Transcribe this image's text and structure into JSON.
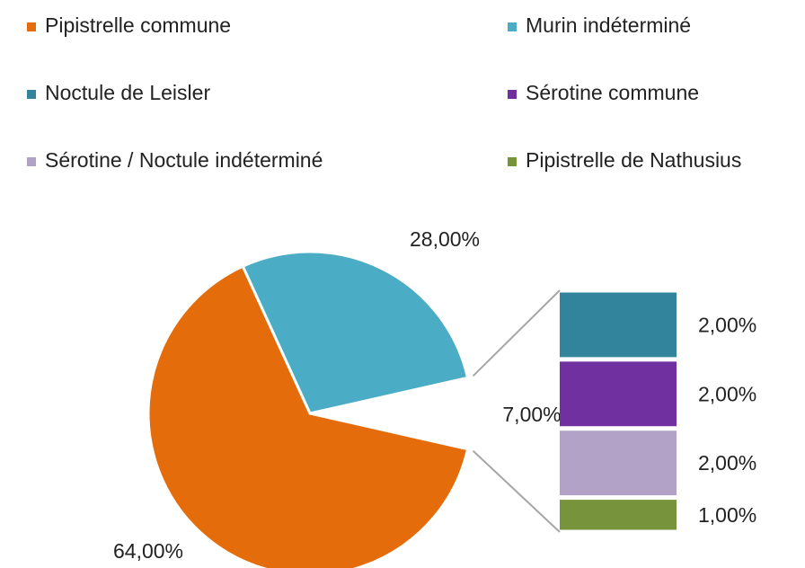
{
  "chart_data": {
    "type": "pie-of-bar",
    "pie": {
      "categories": [
        "Pipistrelle commune",
        "Murin indéterminé"
      ],
      "values": [
        64,
        28
      ],
      "value_labels": [
        "64,00%",
        "28,00%"
      ],
      "colors": [
        "#e46c0a",
        "#4bacc6"
      ]
    },
    "other": {
      "value": 7,
      "label": "7,00%"
    },
    "bar": {
      "categories": [
        "Noctule de Leisler",
        "Sérotine commune",
        "Sérotine / Noctule indéterminé",
        "Pipistrelle de Nathusius"
      ],
      "values": [
        2,
        2,
        2,
        1
      ],
      "value_labels": [
        "2,00%",
        "2,00%",
        "2,00%",
        "1,00%"
      ],
      "colors": [
        "#31849b",
        "#7030a0",
        "#b2a2c7",
        "#77933c"
      ]
    }
  }
}
